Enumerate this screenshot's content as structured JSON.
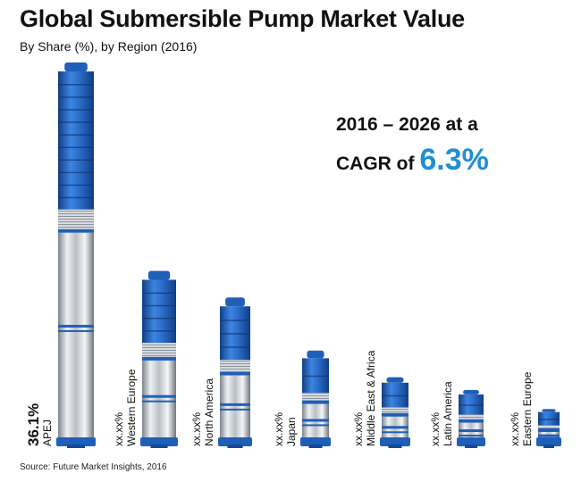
{
  "title": "Global Submersible Pump Market Value",
  "subtitle": "By Share (%), by Region (2016)",
  "callout": {
    "line1": "2016 – 2026 at a",
    "prefix": "CAGR of",
    "value": "6.3%"
  },
  "source": "Source: Future Market Insights, 2016",
  "colors": {
    "accent": "#1f8fd6",
    "pump_blue": "#1f5fb8",
    "steel": "#c9ced3"
  },
  "chart_data": {
    "type": "bar",
    "bar_style": "pictorial-pump",
    "categories": [
      "APEJ",
      "Western Europe",
      "North America",
      "Japan",
      "Middle East & Africa",
      "Latin America",
      "Eastern Europe"
    ],
    "values": [
      36.1,
      16.5,
      14.0,
      9.0,
      6.5,
      5.3,
      3.5
    ],
    "value_labels": [
      "36.1%",
      "xx.xx%",
      "xx.xx%",
      "xx.xx%",
      "xx.xx%",
      "xx.xx%",
      "xx.xx%"
    ],
    "ylim": [
      0,
      36.1
    ],
    "grid": false,
    "legend": "none"
  }
}
